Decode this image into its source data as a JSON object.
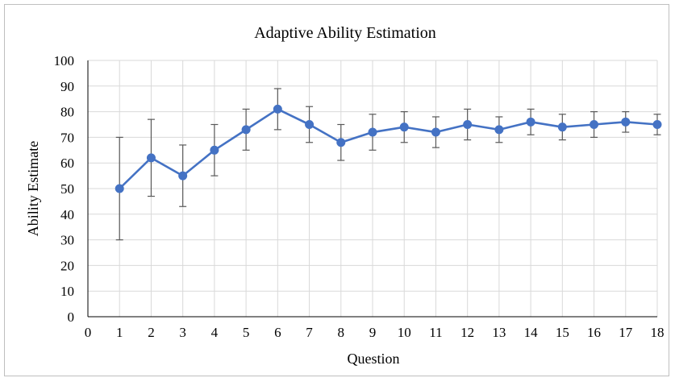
{
  "chart_data": {
    "type": "line",
    "title": "Adaptive Ability Estimation",
    "xlabel": "Question",
    "ylabel": "Ability Estimate",
    "xlim": [
      0,
      18
    ],
    "ylim": [
      0,
      100
    ],
    "x_ticks": [
      "0",
      "1",
      "2",
      "3",
      "4",
      "5",
      "6",
      "7",
      "8",
      "9",
      "10",
      "11",
      "12",
      "13",
      "14",
      "15",
      "16",
      "17",
      "18"
    ],
    "y_ticks": [
      "0",
      "10",
      "20",
      "30",
      "40",
      "50",
      "60",
      "70",
      "80",
      "90",
      "100"
    ],
    "grid": true,
    "legend": "none",
    "series": [
      {
        "x": [
          1,
          2,
          3,
          4,
          5,
          6,
          7,
          8,
          9,
          10,
          11,
          12,
          13,
          14,
          15,
          16,
          17,
          18
        ],
        "values": [
          50,
          62,
          55,
          65,
          73,
          81,
          75,
          68,
          72,
          74,
          72,
          75,
          73,
          76,
          74,
          75,
          76,
          75
        ],
        "error_upper": [
          70,
          77,
          67,
          75,
          81,
          89,
          82,
          75,
          79,
          80,
          78,
          81,
          78,
          81,
          79,
          80,
          80,
          79
        ],
        "error_lower": [
          30,
          47,
          43,
          55,
          65,
          73,
          68,
          61,
          65,
          68,
          66,
          69,
          68,
          71,
          69,
          70,
          72,
          71
        ]
      }
    ],
    "colors": {
      "line": "#4472C4",
      "error_bar": "#595959",
      "grid": "#d9d9d9",
      "axis": "#000000"
    }
  }
}
